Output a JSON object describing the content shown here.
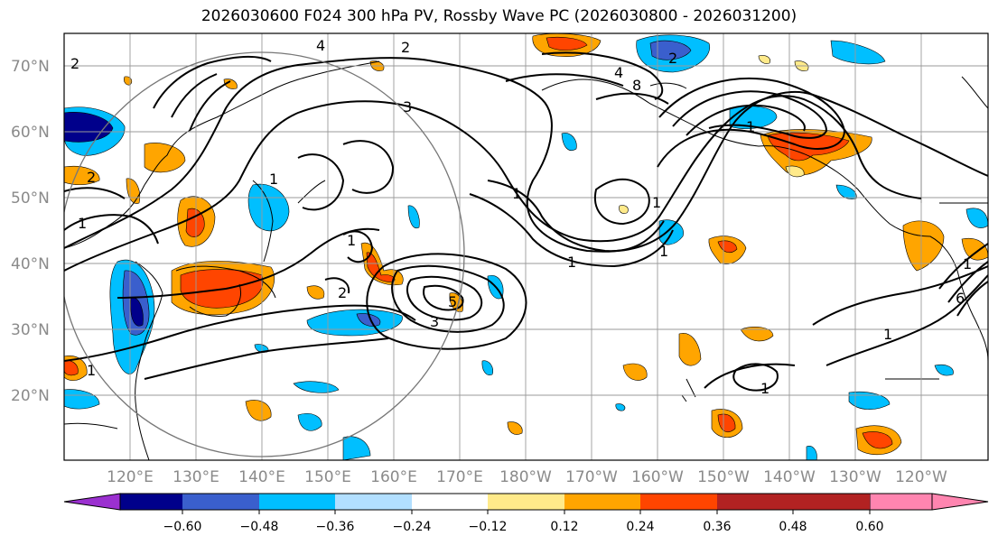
{
  "title": "2026030600 F024 300 hPa PV, Rossby Wave PC (2026030800 - 2026031200)",
  "latitude_labels": [
    "70°N",
    "60°N",
    "50°N",
    "40°N",
    "30°N",
    "20°N"
  ],
  "longitude_labels": [
    "120°E",
    "130°E",
    "140°E",
    "150°E",
    "160°E",
    "170°E",
    "180°W",
    "170°W",
    "160°W",
    "150°W",
    "140°W",
    "130°W",
    "120°W"
  ],
  "colorbar": {
    "ticks": [
      "−0.60",
      "−0.48",
      "−0.36",
      "−0.24",
      "−0.12",
      "0.12",
      "0.24",
      "0.36",
      "0.48",
      "0.60"
    ],
    "colors": [
      "#9b30d0",
      "#00008b",
      "#3a5fcd",
      "#00bfff",
      "#b2dfff",
      "#ffffff",
      "#ffea8a",
      "#ffa500",
      "#ff4500",
      "#b22222",
      "#ff85b0"
    ]
  },
  "contour_labels": [
    "2",
    "2",
    "3",
    "4",
    "2",
    "1",
    "1",
    "1",
    "1",
    "1",
    "5",
    "3",
    "2",
    "1",
    "1",
    "2",
    "4",
    "8",
    "1",
    "1",
    "1",
    "1",
    "6",
    "1"
  ],
  "shading_colors": {
    "neg_strong": "#3a5fcd",
    "neg_mid": "#00bfff",
    "neg_dark": "#00008b",
    "pos_weak": "#ffea8a",
    "pos_mid": "#ffa500",
    "pos_strong": "#ff4500"
  }
}
